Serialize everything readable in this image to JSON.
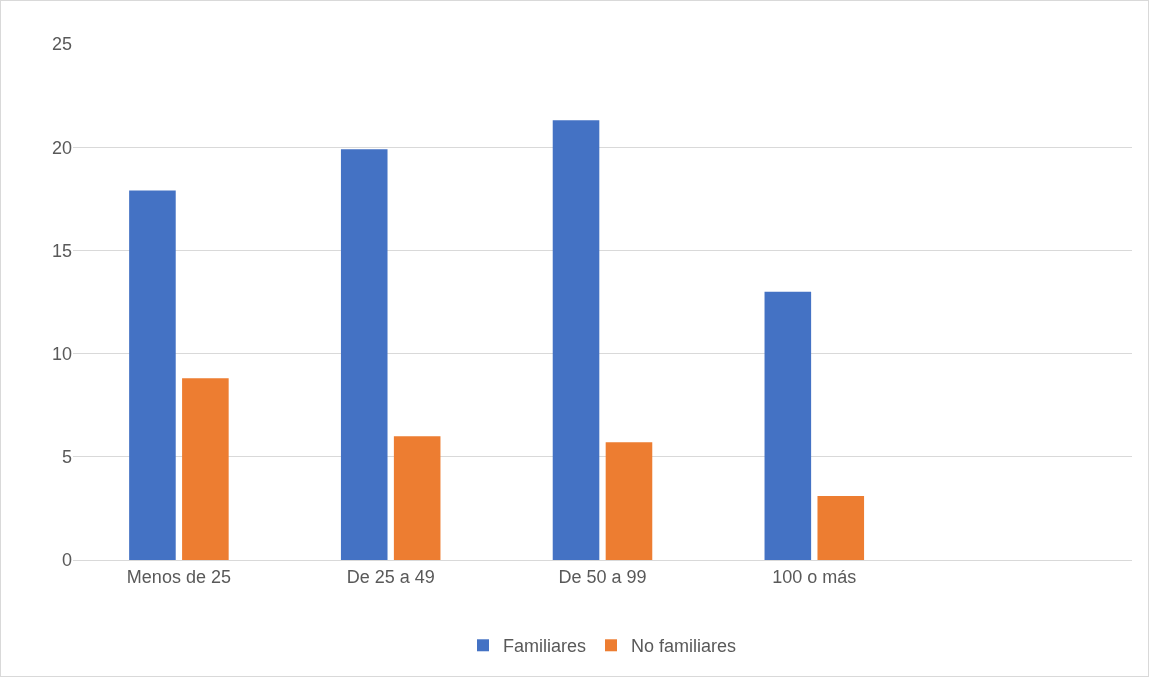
{
  "chart_data": {
    "type": "bar",
    "categories": [
      "Menos de 25",
      "De 25 a 49",
      "De 50 a 99",
      "100 o más",
      null
    ],
    "series": [
      {
        "name": "Familiares",
        "color": "#4472c4",
        "values": [
          17.9,
          19.9,
          21.3,
          13.0,
          null
        ]
      },
      {
        "name": "No familiares",
        "color": "#ed7d31",
        "values": [
          8.8,
          6.0,
          5.7,
          3.1,
          null
        ]
      }
    ],
    "ylim": [
      0,
      25
    ],
    "yticks": [
      0,
      5,
      10,
      15,
      20,
      25
    ],
    "grid": "y",
    "legend": "bottom"
  }
}
